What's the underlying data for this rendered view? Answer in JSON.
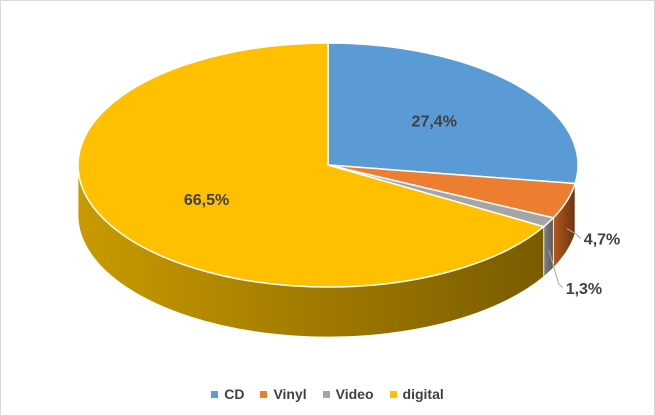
{
  "chart_data": {
    "type": "pie",
    "title": "",
    "categories": [
      "CD",
      "Vinyl",
      "Video",
      "digital"
    ],
    "values": [
      27.4,
      4.7,
      1.3,
      66.5
    ],
    "labels": [
      "27,4%",
      "4,7%",
      "1,3%",
      "66,5%"
    ],
    "colors": [
      "#5B9BD5",
      "#ED7D31",
      "#A5A5A5",
      "#FFC000"
    ],
    "style": "3d",
    "legend_position": "bottom"
  },
  "legend": [
    {
      "label": "CD",
      "color": "#5B9BD5"
    },
    {
      "label": "Vinyl",
      "color": "#ED7D31"
    },
    {
      "label": "Video",
      "color": "#A5A5A5"
    },
    {
      "label": "digital",
      "color": "#FFC000"
    }
  ]
}
